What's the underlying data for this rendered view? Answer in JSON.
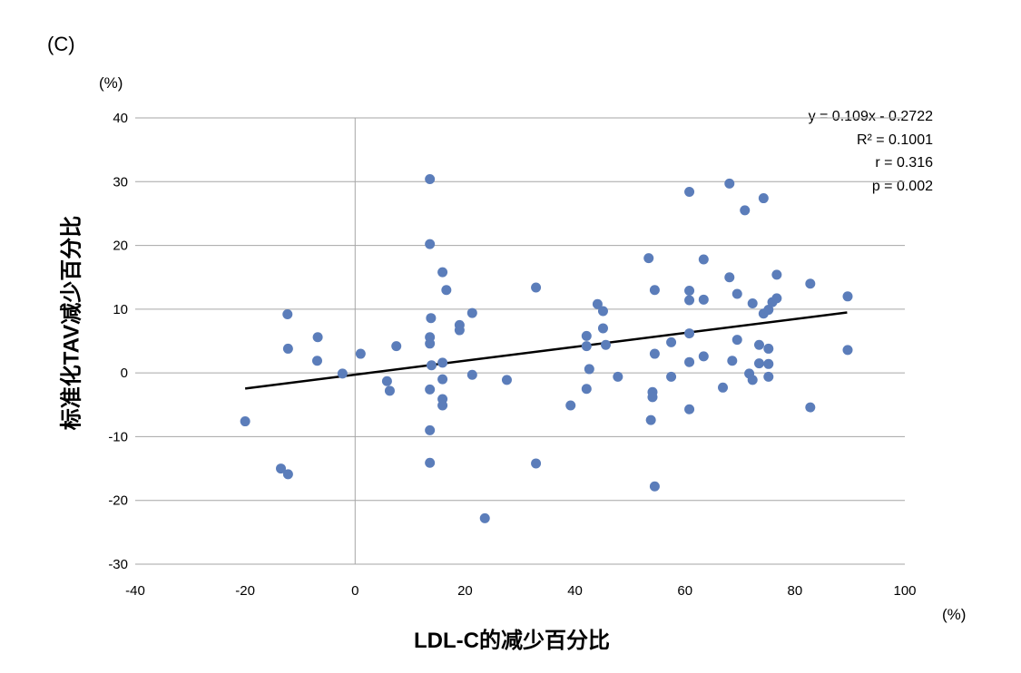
{
  "panel_label": "(C)",
  "chart_data": {
    "type": "scatter",
    "title": "",
    "xlabel": "LDL-C的减少百分比",
    "ylabel": "标准化TAV减少百分比",
    "x_unit": "(%)",
    "y_unit": "(%)",
    "xlim": [
      -40,
      100
    ],
    "ylim": [
      -30,
      40
    ],
    "x_ticks": [
      "-40",
      "-20",
      "0",
      "20",
      "40",
      "60",
      "80",
      "100"
    ],
    "y_ticks": [
      "40",
      "30",
      "20",
      "10",
      "0",
      "-10",
      "-20",
      "-30"
    ],
    "grid": "horizontal",
    "point_color": "#5b7dba",
    "trendline": {
      "slope": 0.109,
      "intercept": -0.2722,
      "x_range": [
        -20,
        89.5
      ]
    },
    "annotation": [
      "y = 0.109x - 0.2722",
      "R² = 0.1001",
      "r = 0.316",
      "p = 0.002"
    ],
    "points": [
      [
        -20,
        -7.6
      ],
      [
        -13.5,
        -15
      ],
      [
        -12.2,
        -15.9
      ],
      [
        -12.3,
        9.2
      ],
      [
        -12.2,
        3.8
      ],
      [
        -6.8,
        5.6
      ],
      [
        -6.9,
        1.9
      ],
      [
        -2.3,
        -0.1
      ],
      [
        1,
        3
      ],
      [
        5.8,
        -1.3
      ],
      [
        6.3,
        -2.8
      ],
      [
        7.5,
        4.2
      ],
      [
        13.6,
        30.4
      ],
      [
        13.6,
        20.2
      ],
      [
        13.8,
        8.6
      ],
      [
        13.6,
        5.6
      ],
      [
        13.6,
        4.6
      ],
      [
        13.9,
        1.2
      ],
      [
        13.6,
        -2.6
      ],
      [
        13.6,
        -9
      ],
      [
        13.6,
        -14.1
      ],
      [
        15.9,
        15.8
      ],
      [
        16.6,
        13
      ],
      [
        15.9,
        1.6
      ],
      [
        15.9,
        -1
      ],
      [
        15.9,
        -4.1
      ],
      [
        15.9,
        -5.1
      ],
      [
        19,
        7.5
      ],
      [
        19,
        6.7
      ],
      [
        21.3,
        9.4
      ],
      [
        21.3,
        -0.3
      ],
      [
        23.6,
        -22.8
      ],
      [
        27.6,
        -1.1
      ],
      [
        32.9,
        13.4
      ],
      [
        32.9,
        -14.2
      ],
      [
        39.2,
        -5.1
      ],
      [
        42.1,
        5.8
      ],
      [
        42.1,
        4.2
      ],
      [
        42.6,
        0.6
      ],
      [
        42.1,
        -2.5
      ],
      [
        44.1,
        10.8
      ],
      [
        45.1,
        9.7
      ],
      [
        45.1,
        7
      ],
      [
        45.6,
        4.4
      ],
      [
        47.8,
        -0.6
      ],
      [
        53.4,
        18
      ],
      [
        53.8,
        -7.4
      ],
      [
        54.1,
        -3
      ],
      [
        54.1,
        -3.8
      ],
      [
        54.5,
        13
      ],
      [
        54.5,
        3
      ],
      [
        54.5,
        -17.8
      ],
      [
        57.5,
        4.8
      ],
      [
        57.5,
        -0.6
      ],
      [
        60.8,
        28.4
      ],
      [
        60.8,
        12.9
      ],
      [
        60.8,
        11.4
      ],
      [
        60.8,
        6.2
      ],
      [
        60.8,
        1.7
      ],
      [
        60.8,
        -5.7
      ],
      [
        63.4,
        17.8
      ],
      [
        63.4,
        11.5
      ],
      [
        63.4,
        2.6
      ],
      [
        66.9,
        -2.3
      ],
      [
        68.1,
        29.7
      ],
      [
        68.1,
        15
      ],
      [
        68.6,
        1.9
      ],
      [
        69.5,
        12.4
      ],
      [
        69.5,
        5.2
      ],
      [
        70.9,
        25.5
      ],
      [
        71.7,
        -0.1
      ],
      [
        72.3,
        10.9
      ],
      [
        72.3,
        -1.1
      ],
      [
        73.5,
        4.4
      ],
      [
        73.5,
        1.5
      ],
      [
        74.3,
        27.4
      ],
      [
        74.3,
        9.3
      ],
      [
        75.2,
        9.9
      ],
      [
        75.2,
        3.8
      ],
      [
        75.2,
        1.4
      ],
      [
        75.2,
        -0.6
      ],
      [
        75.9,
        11.1
      ],
      [
        76.7,
        11.7
      ],
      [
        76.7,
        15.4
      ],
      [
        82.8,
        14
      ],
      [
        82.8,
        -5.4
      ],
      [
        89.6,
        12
      ],
      [
        89.6,
        3.6
      ]
    ]
  }
}
